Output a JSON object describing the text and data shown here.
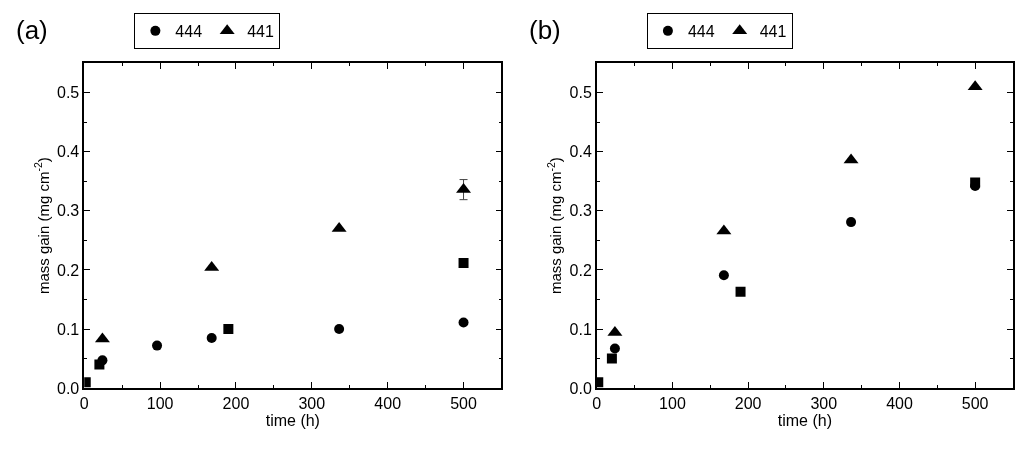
{
  "chart_data": [
    {
      "type": "scatter",
      "title": "(a)",
      "xlabel": "time (h)",
      "ylabel": "mass gain (mg cm$^{-2}$)",
      "xlim": [
        0,
        550
      ],
      "xticks": [
        0,
        100,
        200,
        300,
        400,
        500
      ],
      "ylim": [
        0,
        0.55
      ],
      "yticks": [
        {
          "value": 0,
          "label": "0.0"
        },
        0.1,
        0.2,
        0.3,
        0.4,
        0.5
      ],
      "legend": "top",
      "series": [
        {
          "color": "#000000",
          "marker": "square",
          "x": [
            2,
            20,
            190,
            500
          ],
          "values": [
            0.01,
            0.04,
            0.1,
            0.212
          ]
        },
        {
          "name": "444",
          "color": "#000000",
          "marker": "circle",
          "x": [
            24,
            96,
            168,
            336,
            500
          ],
          "values": [
            0.047,
            0.072,
            0.085,
            0.1,
            0.111
          ]
        },
        {
          "name": "441",
          "color": "#000000",
          "marker": "triangle",
          "x": [
            24,
            168,
            336,
            500
          ],
          "values": [
            0.083,
            0.204,
            0.27,
            0.336
          ],
          "errors": [
            null,
            null,
            null,
            0.017
          ]
        }
      ]
    },
    {
      "type": "scatter",
      "title": "(b)",
      "xlabel": "time (h)",
      "ylabel": "mass gain (mg cm$^{-2}$)",
      "xlim": [
        0,
        550
      ],
      "xticks": [
        0,
        100,
        200,
        300,
        400,
        500
      ],
      "ylim": [
        0,
        0.55
      ],
      "yticks": [
        {
          "value": 0,
          "label": "0.0"
        },
        0.1,
        0.2,
        0.3,
        0.4,
        0.5
      ],
      "legend": "top",
      "series": [
        {
          "color": "#000000",
          "marker": "square",
          "x": [
            2,
            20,
            190,
            500
          ],
          "values": [
            0.01,
            0.05,
            0.163,
            0.348
          ]
        },
        {
          "name": "444",
          "color": "#000000",
          "marker": "circle",
          "x": [
            24,
            168,
            336,
            500
          ],
          "values": [
            0.067,
            0.191,
            0.281,
            0.342
          ]
        },
        {
          "name": "441",
          "color": "#000000",
          "marker": "triangle",
          "x": [
            24,
            168,
            336,
            500
          ],
          "values": [
            0.094,
            0.266,
            0.386,
            0.51
          ]
        }
      ]
    }
  ]
}
